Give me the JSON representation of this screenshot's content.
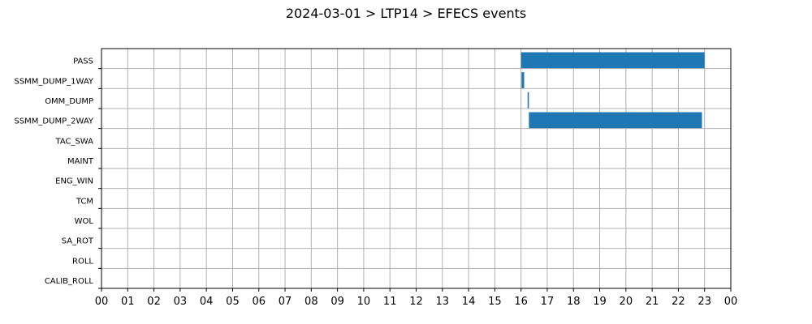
{
  "chart_data": {
    "type": "bar",
    "orientation": "horizontal-timeline",
    "title": "2024-03-01 > LTP14 > EFECS events",
    "xlabel": "",
    "ylabel": "",
    "xlim": [
      0,
      24
    ],
    "x_ticks": [
      "00",
      "01",
      "02",
      "03",
      "04",
      "05",
      "06",
      "07",
      "08",
      "09",
      "10",
      "11",
      "12",
      "13",
      "14",
      "15",
      "16",
      "17",
      "18",
      "19",
      "20",
      "21",
      "22",
      "23",
      "00"
    ],
    "categories": [
      "PASS",
      "SSMM_DUMP_1WAY",
      "OMM_DUMP",
      "SSMM_DUMP_2WAY",
      "TAC_SWA",
      "MAINT",
      "ENG_WIN",
      "TCM",
      "WOL",
      "SA_ROT",
      "ROLL",
      "CALIB_ROLL"
    ],
    "grid": true,
    "bar_color": "#1f77b4",
    "events": [
      {
        "category": "PASS",
        "start": 16.0,
        "end": 23.0
      },
      {
        "category": "SSMM_DUMP_1WAY",
        "start": 16.02,
        "end": 16.12
      },
      {
        "category": "OMM_DUMP",
        "start": 16.25,
        "end": 16.3
      },
      {
        "category": "SSMM_DUMP_2WAY",
        "start": 16.3,
        "end": 22.9
      }
    ]
  }
}
